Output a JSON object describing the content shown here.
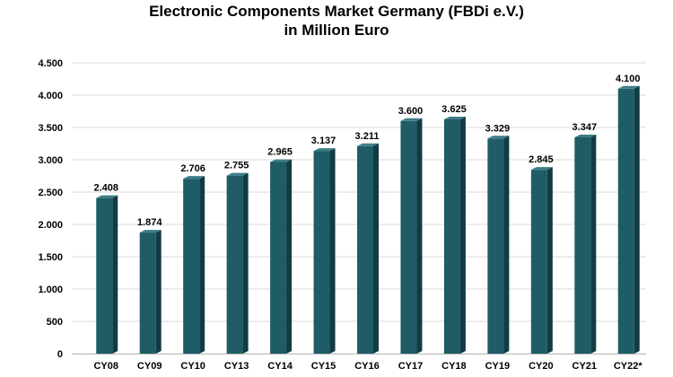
{
  "chart_data": {
    "type": "bar",
    "title": [
      "Electronic Components Market Germany (FBDi e.V.)",
      "in Million Euro"
    ],
    "categories": [
      "CY08",
      "CY09",
      "CY10",
      "CY13",
      "CY14",
      "CY15",
      "CY16",
      "CY17",
      "CY18",
      "CY19",
      "CY20",
      "CY21",
      "CY22*"
    ],
    "values": [
      2408,
      1874,
      2706,
      2755,
      2965,
      3137,
      3211,
      3600,
      3625,
      3329,
      2845,
      3347,
      4100
    ],
    "value_labels": [
      "2.408",
      "1.874",
      "2.706",
      "2.755",
      "2.965",
      "3.137",
      "3.211",
      "3.600",
      "3.625",
      "3.329",
      "2.845",
      "3.347",
      "4.100"
    ],
    "yticks": [
      0,
      500,
      1000,
      1500,
      2000,
      2500,
      3000,
      3500,
      4000,
      4500
    ],
    "ytick_labels": [
      "0",
      "500",
      "1.000",
      "1.500",
      "2.000",
      "2.500",
      "3.000",
      "3.500",
      "4.000",
      "4.500"
    ],
    "ylim": [
      0,
      4500
    ],
    "xlabel": "",
    "ylabel": "",
    "grid": true,
    "legend": "none",
    "bar_color": "#1f5c66",
    "bar_side_color": "#123c43",
    "bar_top_color": "#3d7d87",
    "grid_color": "#d9d9d9"
  }
}
